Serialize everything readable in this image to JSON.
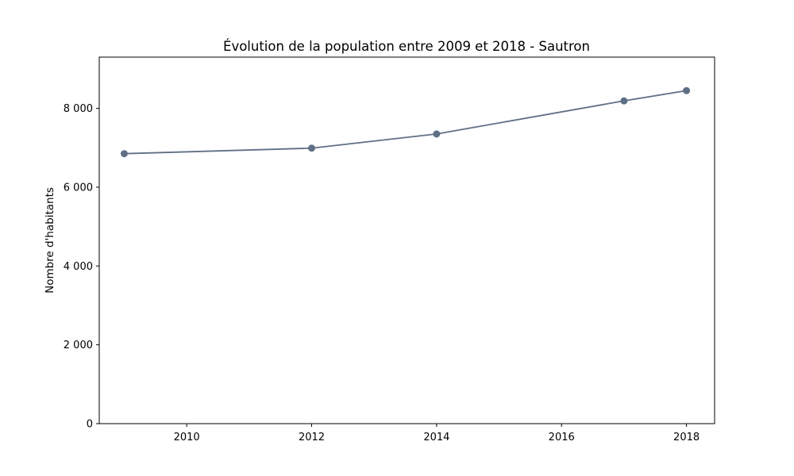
{
  "chart_data": {
    "type": "line",
    "title": "Évolution de la population entre 2009 et 2018 - Sautron",
    "xlabel": "",
    "ylabel": "Nombre d'habitants",
    "x": [
      2009,
      2012,
      2014,
      2017,
      2018
    ],
    "series": [
      {
        "values": [
          6850,
          6990,
          7350,
          8190,
          8450
        ]
      }
    ],
    "xlim": [
      2008.6,
      2018.45
    ],
    "ylim": [
      0,
      9300
    ],
    "xticks": [
      2010,
      2012,
      2014,
      2016,
      2018
    ],
    "xtick_labels": [
      "2010",
      "2012",
      "2014",
      "2016",
      "2018"
    ],
    "yticks": [
      0,
      2000,
      4000,
      6000,
      8000
    ],
    "ytick_labels": [
      "0",
      "2 000",
      "4 000",
      "6 000",
      "8 000"
    ],
    "line_color": "#5f6f85",
    "marker": "circle",
    "grid": false,
    "legend": "none"
  }
}
